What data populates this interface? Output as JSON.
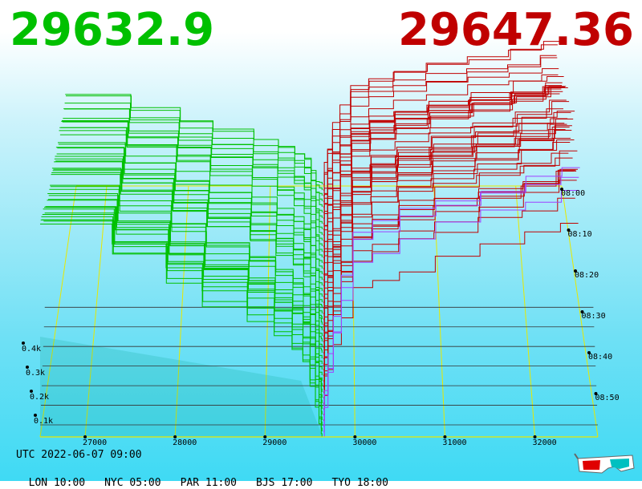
{
  "header": {
    "bid_price": "29632.9",
    "ask_price": "29647.36",
    "bid_color": "#00c000",
    "ask_color": "#c00000"
  },
  "footer": {
    "utc": "UTC 2022-06-07 09:00",
    "cities": [
      {
        "label": "LON 10:00"
      },
      {
        "label": "NYC 05:00"
      },
      {
        "label": "PAR 11:00"
      },
      {
        "label": "BJS 17:00"
      },
      {
        "label": "TYO 18:00"
      }
    ]
  },
  "icons": {
    "corner": "3d-glasses-icon"
  },
  "chart_data": {
    "type": "area",
    "title": "",
    "price_ticks": [
      "27000",
      "28000",
      "29000",
      "30000",
      "31000",
      "32000"
    ],
    "depth_ticks": [
      "0.1k",
      "0.2k",
      "0.3k",
      "0.4k"
    ],
    "time_ticks": [
      "08:00",
      "08:10",
      "08:20",
      "08:30",
      "08:40",
      "08:50"
    ],
    "mid_price": 29640,
    "series": [
      {
        "side": "bid",
        "color": "#00c000",
        "price_range": [
          26500,
          29632.9
        ],
        "depth_range_k": [
          0,
          0.47
        ]
      },
      {
        "side": "ask",
        "color": "#c00000",
        "price_range": [
          29647.36,
          32500
        ],
        "depth_range_k": [
          0,
          0.55
        ]
      }
    ],
    "grid": true,
    "grid_color": "#e8e800"
  }
}
